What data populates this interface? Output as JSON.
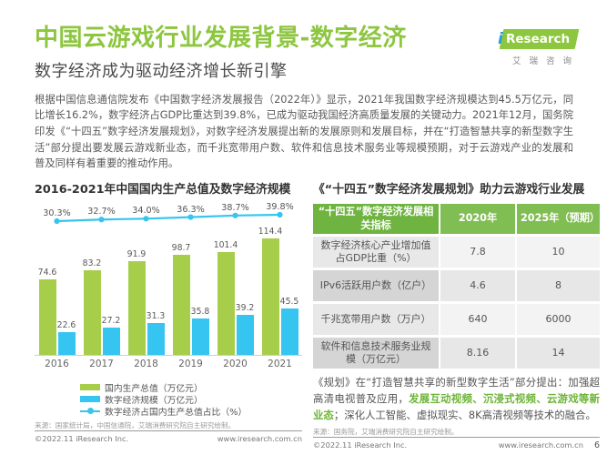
{
  "page": {
    "title": "中国云游戏行业发展背景-数字经济",
    "subtitle": "数字经济成为驱动经济增长新引擎",
    "page_number": "6"
  },
  "logo": {
    "brand_i": "i",
    "brand_rest": "Research",
    "chinese": "艾瑞咨询"
  },
  "intro_paragraph": "根据中国信息通信院发布《中国数字经济发展报告（2022年）》显示，2021年我国数字经济规模达到45.5万亿元，同比增长16.2%，数字经济占GDP比重达到39.8%，已成为驱动我国经济高质量发展的关键动力。2021年12月，国务院印发《“十四五”数字经济发展规划》，对数字经济发展提出新的发展原则和发展目标，并在“打造智慧共享的新型数字生活”部分提出要发展云游戏新业态，而千兆宽带用户数、软件和信息技术服务业等规模预期，对于云游戏产业的发展和普及同样有着重要的推动作用。",
  "left_panel": {
    "chart_title": "2016-2021年中国国内生产总值及数字经济规模",
    "source": "来源：国家统计局，中国信通院，艾瑞消费研究院自主研究绘制。",
    "footer_copyright": "©2022.11 iResearch Inc.",
    "footer_url": "www.iresearch.com.cn"
  },
  "chart_data": {
    "type": "bar",
    "title": "2016-2021年中国国内生产总值及数字经济规模",
    "categories": [
      "2016",
      "2017",
      "2018",
      "2019",
      "2020",
      "2021"
    ],
    "series": [
      {
        "name": "国内生产总值（万亿元）",
        "type": "bar",
        "color": "#a6ce4b",
        "values": [
          74.6,
          83.2,
          91.9,
          98.7,
          101.4,
          114.4
        ]
      },
      {
        "name": "数字经济规模（万亿元）",
        "type": "bar",
        "color": "#35c5f0",
        "values": [
          22.6,
          27.2,
          31.3,
          35.8,
          39.2,
          45.5
        ]
      },
      {
        "name": "数字经济占国内生产总值占比（%）",
        "type": "line",
        "color": "#35c5f0",
        "values": [
          30.3,
          32.7,
          34.0,
          36.3,
          38.7,
          39.8
        ],
        "labels": [
          "30.3%",
          "32.7%",
          "34.0%",
          "36.3%",
          "38.7%",
          "39.8%"
        ]
      }
    ],
    "ylim": [
      0,
      130
    ],
    "grid": false,
    "legend_position": "bottom"
  },
  "right_panel": {
    "section_title": "《“十四五”数字经济发展规划》助力云游戏行业发展",
    "table": {
      "headers": [
        "“十四五”数字经济发展相关指标",
        "2020年",
        "2025年（预期）"
      ],
      "rows": [
        {
          "label": "数字经济核心产业增加值占GDP比重（%）",
          "v2020": "7.8",
          "v2025": "10"
        },
        {
          "label": "IPv6活跃用户数（亿户）",
          "v2020": "4.6",
          "v2025": "8"
        },
        {
          "label": "千兆宽带用户数（万户）",
          "v2020": "640",
          "v2025": "6000"
        },
        {
          "label": "软件和信息技术服务业规模（万亿元）",
          "v2020": "8.16",
          "v2025": "14"
        }
      ]
    },
    "note_part1": "《规划》在“打造智慧共享的新型数字生活”部分提出：加强超高清电视普及应用，",
    "note_highlight": "发展互动视频、沉浸式视频、云游戏等新业态",
    "note_part2": "；深化人工智能、虚拟现实、8K高清视频等技术的融合。",
    "source": "来源：国务院，艾瑞消费研究院自主研究绘制。",
    "footer_copyright": "©2022.11 iResearch Inc.",
    "footer_url": "www.iresearch.com.cn"
  },
  "colors": {
    "brand_green": "#8dc63f",
    "bar_green": "#a6ce4b",
    "accent_cyan": "#35c5f0",
    "table_header_green_dark": "#6fb440",
    "table_header_green_light": "#80bd52",
    "highlight_green": "#6db436"
  }
}
